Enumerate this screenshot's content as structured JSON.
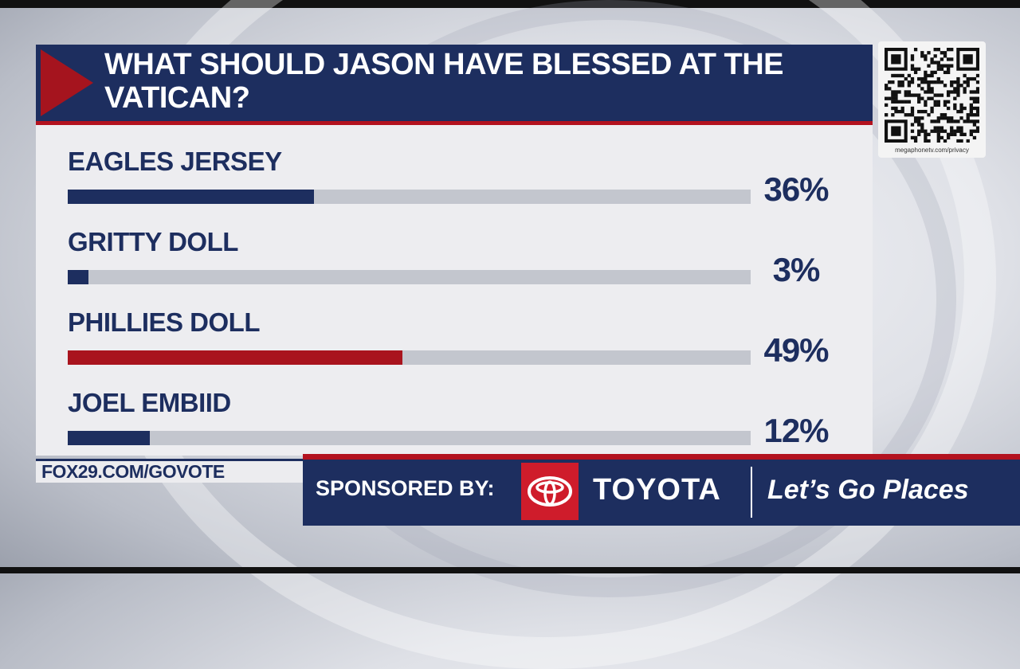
{
  "poll": {
    "question": "WHAT SHOULD JASON HAVE BLESSED AT THE VATICAN?"
  },
  "chart_data": {
    "type": "bar",
    "orientation": "horizontal",
    "title": "WHAT SHOULD JASON HAVE BLESSED AT THE VATICAN?",
    "categories": [
      "EAGLES JERSEY",
      "GRITTY DOLL",
      "PHILLIES DOLL",
      "JOEL EMBIID"
    ],
    "values": [
      36,
      3,
      49,
      12
    ],
    "value_labels": [
      "36%",
      "3%",
      "49%",
      "12%"
    ],
    "xlim": [
      0,
      100
    ],
    "grid": false,
    "highlight_color": "#a9141e",
    "bar_color": "#1d2e5f"
  },
  "footer": {
    "url": "FOX29.COM/GOVOTE",
    "sponsor_label": "SPONSORED BY:",
    "sponsor_name": "TOYOTA",
    "tagline": "Let’s Go Places"
  },
  "qr": {
    "caption": "megaphonetv.com/privacy"
  },
  "colors": {
    "navy": "#1d2e5f",
    "red": "#b3121f",
    "toyota_red": "#cf1c2b",
    "track": "#c3c6ce"
  },
  "icons": [
    "play-arrow-icon",
    "toyota-logo-icon",
    "qr-code-icon"
  ]
}
